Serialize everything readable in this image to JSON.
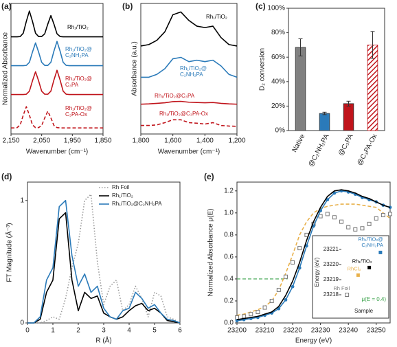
{
  "chart_data": [
    {
      "type": "line",
      "panel": "(a)",
      "y_label": "Normalized Absorbance",
      "x_label": "Wavenumber (cm⁻¹)",
      "xlim": [
        2150,
        1850
      ],
      "ylim": [
        0,
        4.3
      ],
      "xticks": [
        {
          "value": 2150,
          "label": "2,150"
        },
        {
          "value": 2050,
          "label": "2,050"
        },
        {
          "value": 1950,
          "label": "1,950"
        },
        {
          "value": 1850,
          "label": "1,850"
        }
      ],
      "x": [
        2150,
        2140,
        2130,
        2120,
        2110,
        2100,
        2090,
        2080,
        2070,
        2060,
        2050,
        2040,
        2030,
        2020,
        2010,
        2000,
        1990,
        1980,
        1970,
        1960,
        1950,
        1940,
        1930,
        1920,
        1910,
        1900,
        1890,
        1880,
        1870,
        1860,
        1850
      ],
      "series": [
        {
          "name": "Rh₁/TiO₂",
          "color": "#000000",
          "values": [
            3.2,
            3.2,
            3.2,
            3.21,
            3.32,
            3.71,
            4.05,
            3.71,
            3.32,
            3.21,
            3.21,
            3.3,
            3.62,
            3.9,
            3.62,
            3.3,
            3.21,
            3.2,
            3.2,
            3.2,
            3.2,
            3.2,
            3.2,
            3.2,
            3.2,
            3.2,
            3.2,
            3.2,
            3.2,
            3.2,
            3.2
          ]
        },
        {
          "name": "Rh₁/TiO₂@C₂NH₂PA",
          "color": "#2a7ab9",
          "values": [
            2.25,
            2.25,
            2.25,
            2.25,
            2.25,
            2.26,
            2.36,
            2.7,
            3.0,
            2.7,
            2.36,
            2.26,
            2.26,
            2.36,
            2.73,
            3.05,
            2.73,
            2.36,
            2.26,
            2.25,
            2.25,
            2.25,
            2.25,
            2.25,
            2.25,
            2.25,
            2.25,
            2.25,
            2.25,
            2.25,
            2.25
          ]
        },
        {
          "name": "Rh₁/TiO₂@C₃PA",
          "color": "#c0141b",
          "values": [
            1.3,
            1.3,
            1.3,
            1.3,
            1.3,
            1.31,
            1.41,
            1.75,
            2.05,
            1.75,
            1.41,
            1.31,
            1.31,
            1.41,
            1.78,
            2.1,
            1.78,
            1.41,
            1.31,
            1.3,
            1.3,
            1.3,
            1.3,
            1.3,
            1.3,
            1.3,
            1.3,
            1.3,
            1.3,
            1.3,
            1.3
          ]
        },
        {
          "name": "Rh₁/TiO₂@C₃PA-Ox",
          "color": "#c0141b",
          "dash": "dashed",
          "values": [
            0.2,
            0.2,
            0.21,
            0.3,
            0.62,
            0.9,
            0.62,
            0.3,
            0.21,
            0.21,
            0.28,
            0.53,
            0.75,
            0.53,
            0.28,
            0.21,
            0.2,
            0.2,
            0.2,
            0.2,
            0.2,
            0.2,
            0.2,
            0.2,
            0.2,
            0.2,
            0.2,
            0.2,
            0.2,
            0.2,
            0.2
          ]
        }
      ]
    },
    {
      "type": "line",
      "panel": "(b)",
      "y_label": "Absorbance (a.u.)",
      "x_label": "Wavenumber (cm⁻¹)",
      "xlim": [
        1800,
        1200
      ],
      "ylim": [
        0,
        4.6
      ],
      "xticks": [
        {
          "value": 1800,
          "label": "1,800"
        },
        {
          "value": 1600,
          "label": "1,600"
        },
        {
          "value": 1400,
          "label": "1,400"
        },
        {
          "value": 1200,
          "label": "1,200"
        }
      ],
      "x": [
        1800,
        1750,
        1700,
        1650,
        1600,
        1550,
        1500,
        1450,
        1400,
        1350,
        1300,
        1250,
        1200
      ],
      "series": [
        {
          "name": "Rh₁/TiO₂",
          "color": "#000000",
          "values": [
            3.1,
            3.15,
            3.3,
            3.6,
            4.2,
            4.3,
            4.0,
            3.8,
            3.75,
            3.8,
            3.4,
            3.15,
            3.1
          ]
        },
        {
          "name": "Rh₁/TiO₂@C₂NH₂PA",
          "color": "#2a7ab9",
          "values": [
            2.0,
            2.0,
            2.1,
            2.3,
            2.65,
            2.7,
            2.55,
            2.6,
            2.55,
            2.6,
            2.4,
            2.1,
            2.0
          ]
        },
        {
          "name": "Rh₁/TiO₂@C₃PA",
          "color": "#c0141b",
          "values": [
            1.05,
            1.06,
            1.08,
            1.1,
            1.14,
            1.15,
            1.12,
            1.11,
            1.1,
            1.11,
            1.08,
            1.06,
            1.05
          ]
        },
        {
          "name": "Rh₁/TiO₂@C₃PA-Ox",
          "color": "#c0141b",
          "dash": "dashed",
          "values": [
            0.3,
            0.3,
            0.32,
            0.4,
            0.5,
            0.5,
            0.4,
            0.38,
            0.35,
            0.4,
            0.3,
            0.28,
            0.27
          ]
        }
      ]
    },
    {
      "type": "bar",
      "panel": "(c)",
      "y_label": "D₂ conversion",
      "categories": [
        "Native",
        "@C₂NH₂PA",
        "@C₃PA",
        "@C₃PA-Ox"
      ],
      "values": [
        68,
        14,
        22,
        70
      ],
      "errors": [
        7,
        1,
        2,
        11
      ],
      "colors": [
        "#808080",
        "#2a7ab9",
        "#c0141b",
        "#c0141b"
      ],
      "hatch": [
        false,
        false,
        false,
        true
      ],
      "ylim": [
        0,
        100
      ],
      "yticks": [
        {
          "value": 0,
          "label": "0%"
        },
        {
          "value": 20,
          "label": "20%"
        },
        {
          "value": 40,
          "label": "40%"
        },
        {
          "value": 60,
          "label": "60%"
        },
        {
          "value": 80,
          "label": "80%"
        },
        {
          "value": 100,
          "label": "100%"
        }
      ]
    },
    {
      "type": "line",
      "panel": "(d)",
      "y_label": "FT Magnitude (Å⁻³)",
      "x_label": "R (Å)",
      "legend": "upper right",
      "xlim": [
        0,
        6
      ],
      "ylim": [
        0,
        1.15
      ],
      "xticks": [
        0,
        1,
        2,
        3,
        4,
        5,
        6
      ],
      "yticks": [
        0,
        1
      ],
      "x": [
        0,
        0.25,
        0.5,
        0.75,
        1.0,
        1.25,
        1.5,
        1.75,
        2.0,
        2.25,
        2.5,
        2.75,
        3.0,
        3.25,
        3.5,
        3.75,
        4.0,
        4.25,
        4.5,
        4.75,
        5.0,
        5.25,
        5.5,
        5.75,
        6.0
      ],
      "series": [
        {
          "name": "Rh Foil",
          "color": "#999999",
          "dash": "dotted",
          "values": [
            0,
            0,
            0,
            0.02,
            0.05,
            0.03,
            0.2,
            0.45,
            0.65,
            1.0,
            1.05,
            0.5,
            0.15,
            0.3,
            0.35,
            0.1,
            0.15,
            0.3,
            0.2,
            0.05,
            0.25,
            0.22,
            0.05,
            0.03,
            0
          ]
        },
        {
          "name": "Rh₁/TiO₂",
          "color": "#000000",
          "values": [
            0,
            0,
            0.03,
            0.25,
            0.35,
            0.85,
            0.9,
            0.35,
            0.1,
            0.25,
            0.2,
            0.22,
            0.08,
            0.05,
            0.03,
            0.05,
            0.1,
            0.14,
            0.16,
            0.1,
            0.12,
            0.08,
            0.02,
            0.01,
            0
          ]
        },
        {
          "name": "Rh₁/TiO₂@C₂NH₂PA",
          "color": "#2a7ab9",
          "values": [
            0,
            0,
            0.05,
            0.35,
            0.45,
            0.95,
            1.0,
            0.55,
            0.3,
            0.4,
            0.25,
            0.3,
            0.12,
            0.05,
            0.03,
            0.1,
            0.12,
            0.25,
            0.2,
            0.12,
            0.15,
            0.08,
            0.03,
            0.02,
            0
          ]
        }
      ]
    },
    {
      "type": "line",
      "panel": "(e)",
      "y_label": "Normalized Absorbance μ(E)",
      "x_label": "Energy (eV)",
      "xlim": [
        23200,
        23255
      ],
      "ylim": [
        0,
        1.28
      ],
      "xticks": [
        23200,
        23210,
        23220,
        23230,
        23240,
        23250
      ],
      "yticks": [
        {
          "value": 0,
          "label": "0.0"
        },
        0.2,
        0.4,
        0.6,
        0.8,
        {
          "value": 1,
          "label": "1.0"
        },
        1.2
      ],
      "hline": 0.4,
      "hline_color": "#3aa24a",
      "x": [
        23200,
        23202.5,
        23205,
        23207.5,
        23210,
        23212.5,
        23215,
        23217.5,
        23220,
        23222.5,
        23225,
        23227.5,
        23230,
        23232.5,
        23235,
        23237.5,
        23240,
        23242.5,
        23245,
        23247.5,
        23250,
        23252.5,
        23255
      ],
      "series": [
        {
          "color": "#e8b04a",
          "dash": "dashed",
          "values": [
            0.07,
            0.08,
            0.1,
            0.12,
            0.15,
            0.2,
            0.3,
            0.45,
            0.62,
            0.8,
            0.92,
            1.0,
            1.04,
            1.06,
            1.07,
            1.08,
            1.08,
            1.08,
            1.07,
            1.06,
            1.05,
            1.0,
            0.95
          ]
        },
        {
          "color": "#777777",
          "marker": "square",
          "line": false,
          "values": [
            0.05,
            0.06,
            0.08,
            0.1,
            0.14,
            0.2,
            0.3,
            0.42,
            0.55,
            0.68,
            0.8,
            0.9,
            0.97,
            0.99,
            0.96,
            0.92,
            0.87,
            0.85,
            0.86,
            0.9,
            0.95,
            0.98,
            0.99
          ]
        },
        {
          "color": "#2a7ab9",
          "marker": "circle",
          "values": [
            0.02,
            0.03,
            0.04,
            0.05,
            0.07,
            0.09,
            0.13,
            0.21,
            0.33,
            0.5,
            0.7,
            0.88,
            1.02,
            1.12,
            1.18,
            1.2,
            1.19,
            1.17,
            1.14,
            1.12,
            1.1,
            1.07,
            1.05
          ]
        },
        {
          "color": "#000000",
          "values": [
            0.03,
            0.04,
            0.05,
            0.06,
            0.08,
            0.1,
            0.15,
            0.25,
            0.38,
            0.55,
            0.75,
            0.92,
            1.05,
            1.15,
            1.2,
            1.21,
            1.2,
            1.18,
            1.15,
            1.13,
            1.1,
            1.07,
            1.05
          ]
        }
      ],
      "inset": {
        "type": "scatter",
        "x_label": "Sample",
        "y_label": "Energy (eV)",
        "legend_text": "μ(E = 0.4)",
        "legend_color": "#3aa24a",
        "categories": [
          "Rh Foil",
          "RhCl₃",
          "Rh₁/TiO₂",
          "Rh₁/TiO₂@C₂NH₂PA"
        ],
        "values": [
          23218.0,
          23219.3,
          23219.8,
          23220.8
        ],
        "colors": [
          "#777777",
          "#e8b04a",
          "#000000",
          "#2a7ab9"
        ],
        "ylim": [
          23217.5,
          23221.5
        ],
        "yticks": [
          23218,
          23219,
          23220,
          23221
        ]
      }
    }
  ]
}
